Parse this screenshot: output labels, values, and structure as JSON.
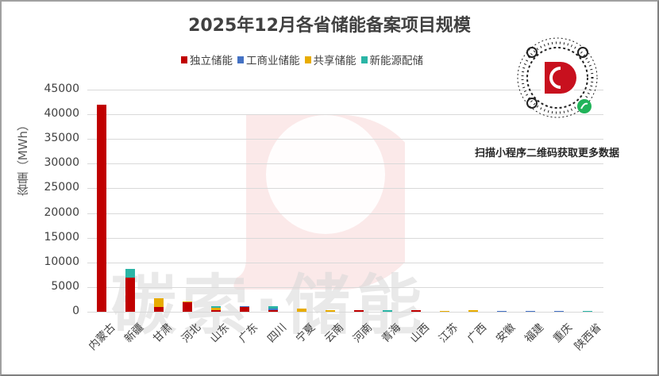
{
  "title": "2025年12月各省储能备案项目规模",
  "legend": [
    {
      "label": "独立储能",
      "color": "#c00000"
    },
    {
      "label": "工商业储能",
      "color": "#4472c4"
    },
    {
      "label": "共享储能",
      "color": "#e8ac00"
    },
    {
      "label": "新能源配储",
      "color": "#2bb5a6"
    }
  ],
  "y_axis": {
    "label": "容量（MWh）",
    "ticks": [
      "45000",
      "40000",
      "35000",
      "30000",
      "25000",
      "20000",
      "15000",
      "10000",
      "5000",
      "0"
    ]
  },
  "watermark": "碳索·储能",
  "qr": {
    "caption": "扫描小程序二维码获取更多数据",
    "icon": "mini-program-qr-code"
  },
  "chart_data": {
    "type": "bar",
    "stacked": true,
    "title": "2025年12月各省储能备案项目规模",
    "xlabel": "",
    "ylabel": "容量（MWh）",
    "ylim": [
      0,
      45000
    ],
    "grid": true,
    "legend_position": "top",
    "categories": [
      "内蒙古",
      "新疆",
      "甘肃",
      "河北",
      "山东",
      "广东",
      "四川",
      "宁夏",
      "云南",
      "河南",
      "青海",
      "山西",
      "江苏",
      "广西",
      "安徽",
      "福建",
      "重庆",
      "陕西省"
    ],
    "series": [
      {
        "name": "独立储能",
        "color": "#c00000",
        "values": [
          42000,
          6900,
          950,
          1900,
          350,
          950,
          350,
          0,
          0,
          400,
          0,
          400,
          0,
          0,
          0,
          0,
          0,
          0
        ]
      },
      {
        "name": "工商业储能",
        "color": "#4472c4",
        "values": [
          0,
          0,
          0,
          0,
          0,
          250,
          350,
          0,
          0,
          0,
          0,
          0,
          0,
          0,
          200,
          200,
          200,
          0
        ]
      },
      {
        "name": "共享储能",
        "color": "#e8ac00",
        "values": [
          0,
          0,
          1850,
          250,
          450,
          0,
          0,
          600,
          400,
          0,
          0,
          0,
          200,
          350,
          0,
          0,
          0,
          0
        ]
      },
      {
        "name": "新能源配储",
        "color": "#2bb5a6",
        "values": [
          0,
          1700,
          0,
          0,
          350,
          0,
          400,
          0,
          0,
          0,
          350,
          0,
          0,
          0,
          0,
          0,
          0,
          200
        ]
      }
    ]
  }
}
